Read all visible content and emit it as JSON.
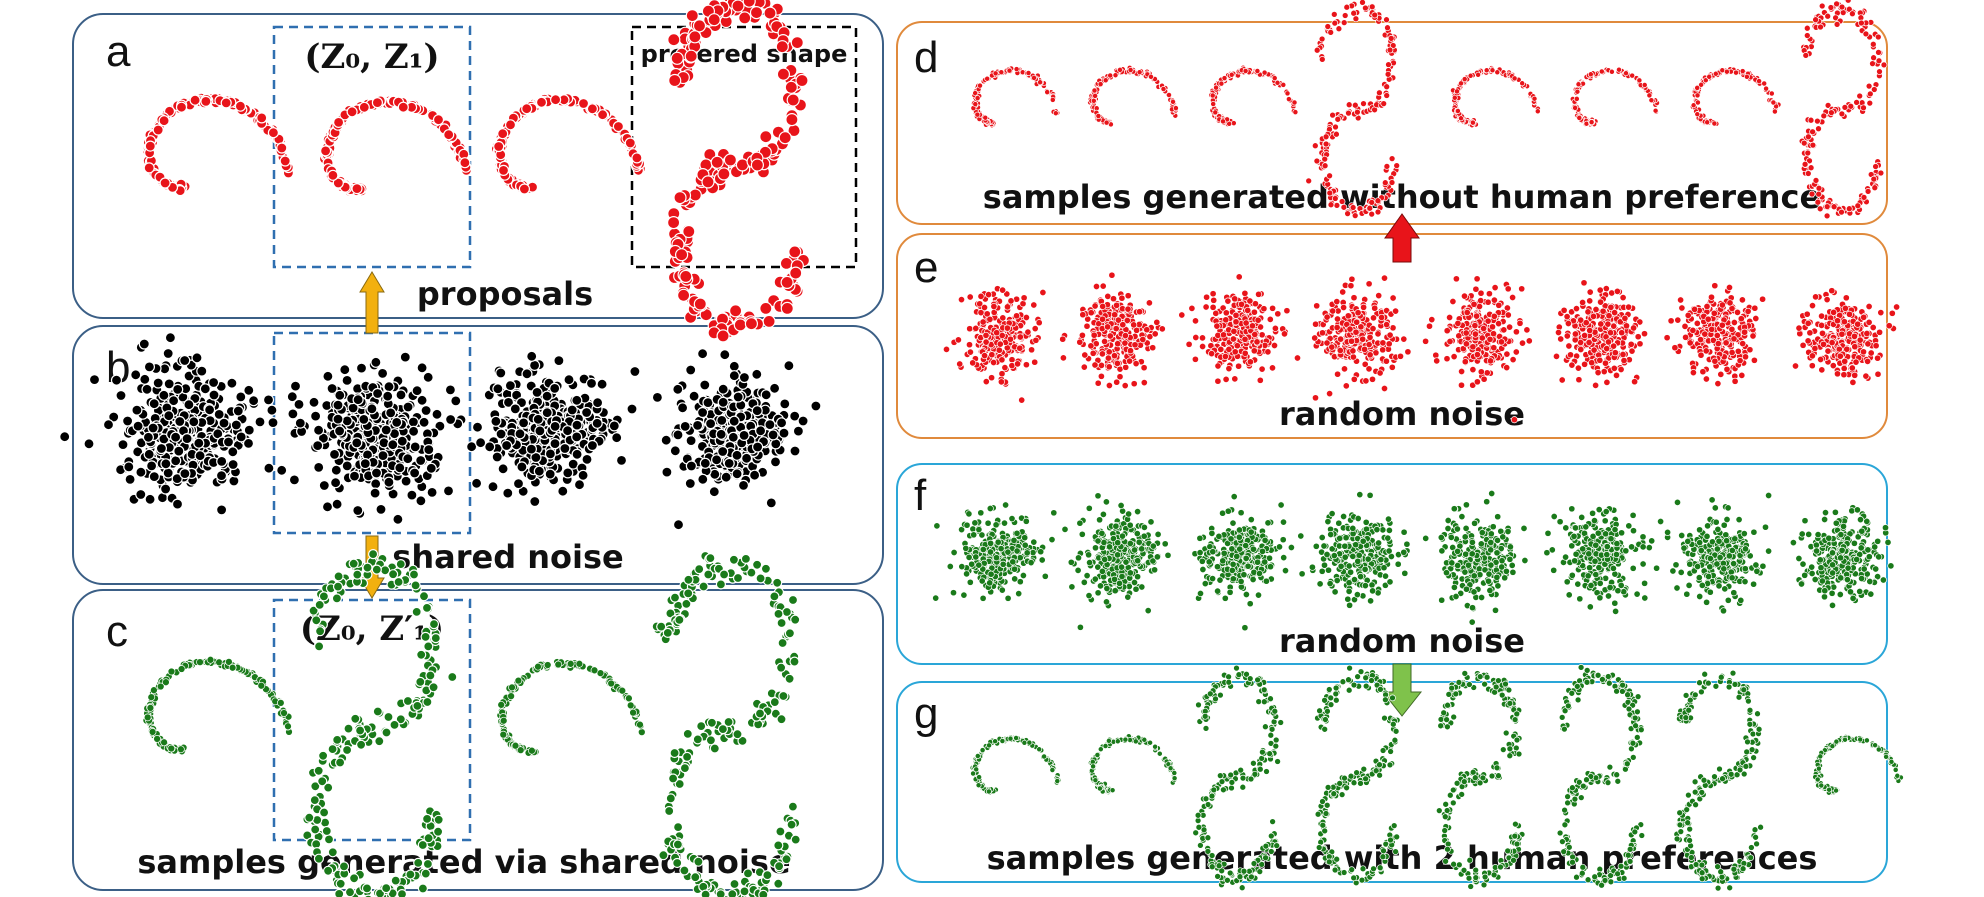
{
  "panels": {
    "a": {
      "letter": "a",
      "caption": "proposals",
      "math_label": "(Z₀, Z₁)",
      "pref_label": "prefered shape",
      "color": "#e8141a"
    },
    "b": {
      "letter": "b",
      "caption": "shared noise",
      "color": "#000000"
    },
    "c": {
      "letter": "c",
      "caption": "samples generated via shared noise",
      "math_label": "(Z₀, Z′₁)",
      "color": "#1a7a1a"
    },
    "d": {
      "letter": "d",
      "caption": "samples generated without human preference",
      "color": "#e8141a"
    },
    "e": {
      "letter": "e",
      "caption": "random noise",
      "color": "#e8141a"
    },
    "f": {
      "letter": "f",
      "caption": "random noise",
      "color": "#1a7a1a"
    },
    "g": {
      "letter": "g",
      "caption": "samples generated with 2 human preferences",
      "color": "#1a7a1a"
    }
  },
  "colors": {
    "left_panel_border": "#3b5f86",
    "orange_panel_border": "#e08a3c",
    "cyan_panel_border": "#2aa6d8",
    "dashed_blue": "#2f6fb0",
    "dashed_black": "#000000",
    "arrow_yellow": "#f2b00f",
    "arrow_red": "#e8141a",
    "arrow_green": "#7fc24b"
  }
}
